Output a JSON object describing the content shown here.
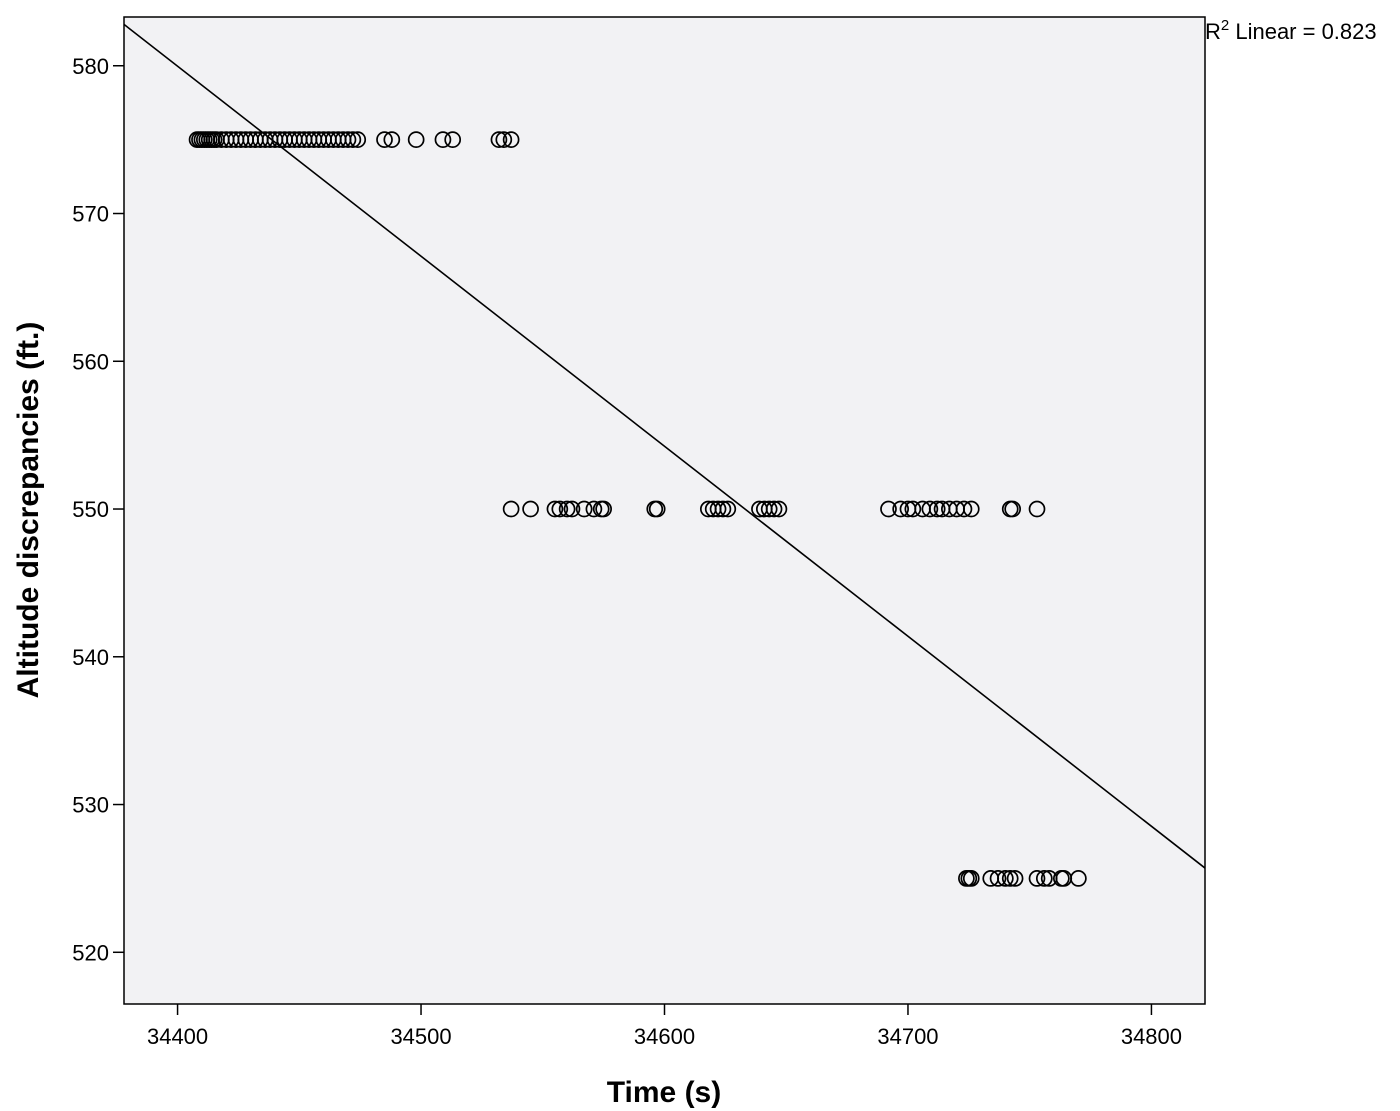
{
  "chart_data": {
    "type": "scatter",
    "title": "",
    "xlabel": "Time (s)",
    "ylabel": "Altitude discrepancies (ft.)",
    "xlim": [
      34378,
      34822
    ],
    "ylim": [
      516.5,
      583.3
    ],
    "xticks": [
      34400,
      34500,
      34600,
      34700,
      34800
    ],
    "yticks": [
      520,
      530,
      540,
      550,
      560,
      570,
      580
    ],
    "grid": false,
    "legend": "none",
    "plot_background": "#f2f2f4",
    "marker_color": "#000000",
    "fit_line": {
      "type": "linear",
      "x": [
        34378,
        34822
      ],
      "y": [
        582.8,
        525.7
      ],
      "annotation_prefix": "R",
      "annotation_sup": "2",
      "annotation_text": " Linear = 0.823"
    },
    "series": [
      {
        "x": [
          34408,
          34409,
          34410,
          34411,
          34412,
          34413,
          34414,
          34415,
          34416,
          34418,
          34420,
          34422,
          34424,
          34426,
          34428,
          34430,
          34432,
          34434,
          34436,
          34438,
          34440,
          34442,
          34444,
          34446,
          34448,
          34450,
          34452,
          34454,
          34456,
          34458,
          34460,
          34462,
          34464,
          34466,
          34468,
          34470,
          34472,
          34474,
          34485,
          34488,
          34498,
          34509,
          34513,
          34532,
          34534,
          34537,
          34537,
          34545,
          34555,
          34557,
          34560,
          34562,
          34567,
          34571,
          34574,
          34575,
          34596,
          34597,
          34618,
          34620,
          34622,
          34624,
          34626,
          34639,
          34641,
          34643,
          34645,
          34647,
          34692,
          34697,
          34700,
          34702,
          34706,
          34709,
          34712,
          34714,
          34717,
          34720,
          34723,
          34726,
          34742,
          34743,
          34753,
          34724,
          34725,
          34726,
          34734,
          34737,
          34740,
          34742,
          34744,
          34753,
          34756,
          34758,
          34763,
          34764,
          34770
        ],
        "y": [
          575,
          575,
          575,
          575,
          575,
          575,
          575,
          575,
          575,
          575,
          575,
          575,
          575,
          575,
          575,
          575,
          575,
          575,
          575,
          575,
          575,
          575,
          575,
          575,
          575,
          575,
          575,
          575,
          575,
          575,
          575,
          575,
          575,
          575,
          575,
          575,
          575,
          575,
          575,
          575,
          575,
          575,
          575,
          575,
          575,
          575,
          550,
          550,
          550,
          550,
          550,
          550,
          550,
          550,
          550,
          550,
          550,
          550,
          550,
          550,
          550,
          550,
          550,
          550,
          550,
          550,
          550,
          550,
          550,
          550,
          550,
          550,
          550,
          550,
          550,
          550,
          550,
          550,
          550,
          550,
          550,
          550,
          550,
          525,
          525,
          525,
          525,
          525,
          525,
          525,
          525,
          525,
          525,
          525,
          525,
          525,
          525
        ]
      }
    ]
  }
}
